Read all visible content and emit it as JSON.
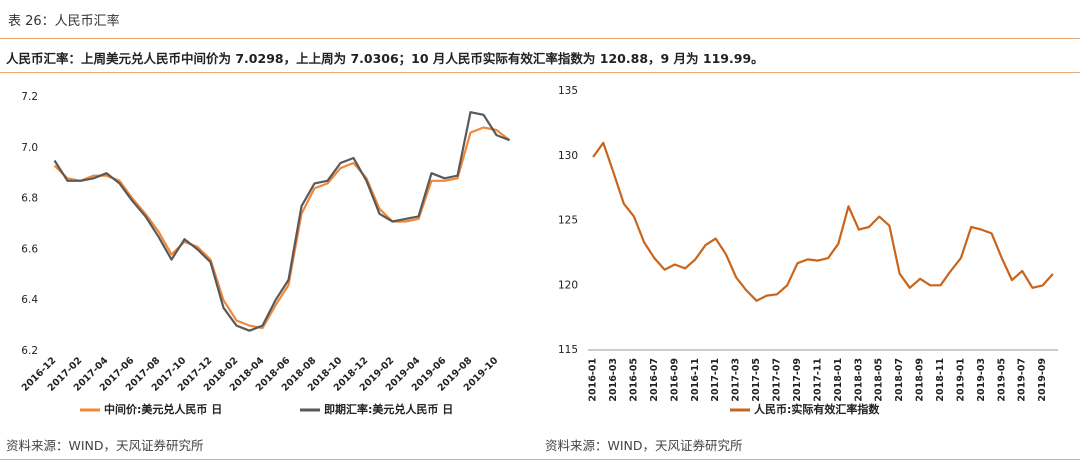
{
  "header": {
    "title": "表 26：人民币汇率"
  },
  "summary": "人民币汇率：上周美元兑人民币中间价为 7.0298，上上周为 7.0306；10 月人民币实际有效汇率指数为 120.88，9 月为 119.99。",
  "chart_data": [
    {
      "type": "line",
      "categories": [
        "2016-12",
        null,
        "2017-02",
        null,
        "2017-04",
        null,
        "2017-06",
        null,
        "2017-08",
        null,
        "2017-10",
        null,
        "2017-12",
        null,
        "2018-02",
        null,
        "2018-04",
        null,
        "2018-06",
        null,
        "2018-08",
        null,
        "2018-10",
        null,
        "2018-12",
        null,
        "2019-02",
        null,
        "2019-04",
        null,
        "2019-06",
        null,
        "2019-08",
        null,
        "2019-10",
        null
      ],
      "series": [
        {
          "name": "中间价:美元兑人民币 日",
          "color": "#f0883a",
          "values": [
            6.93,
            6.88,
            6.87,
            6.89,
            6.89,
            6.87,
            6.8,
            6.74,
            6.67,
            6.58,
            6.63,
            6.61,
            6.56,
            6.4,
            6.32,
            6.3,
            6.29,
            6.38,
            6.46,
            6.74,
            6.84,
            6.86,
            6.92,
            6.94,
            6.88,
            6.76,
            6.71,
            6.71,
            6.72,
            6.87,
            6.87,
            6.88,
            7.06,
            7.08,
            7.07,
            7.03
          ]
        },
        {
          "name": "即期汇率:美元兑人民币 日",
          "color": "#595959",
          "values": [
            6.95,
            6.87,
            6.87,
            6.88,
            6.9,
            6.86,
            6.79,
            6.73,
            6.65,
            6.56,
            6.64,
            6.6,
            6.55,
            6.37,
            6.3,
            6.28,
            6.3,
            6.4,
            6.48,
            6.77,
            6.86,
            6.87,
            6.94,
            6.96,
            6.87,
            6.74,
            6.71,
            6.72,
            6.73,
            6.9,
            6.88,
            6.89,
            7.14,
            7.13,
            7.05,
            7.03
          ]
        }
      ],
      "ylim": [
        6.2,
        7.2
      ],
      "yticks": [
        6.2,
        6.4,
        6.6,
        6.8,
        {
          "value": 7,
          "label": "7.0"
        },
        7.2
      ]
    },
    {
      "type": "line",
      "categories": [
        "2016-01",
        null,
        "2016-03",
        null,
        "2016-05",
        null,
        "2016-07",
        null,
        "2016-09",
        null,
        "2016-11",
        null,
        "2017-01",
        null,
        "2017-03",
        null,
        "2017-05",
        null,
        "2017-07",
        null,
        "2017-09",
        null,
        "2017-11",
        null,
        "2018-01",
        null,
        "2018-03",
        null,
        "2018-05",
        null,
        "2018-07",
        null,
        "2018-09",
        null,
        "2018-11",
        null,
        "2019-01",
        null,
        "2019-03",
        null,
        "2019-05",
        null,
        "2019-07",
        null,
        "2019-09",
        null
      ],
      "series": [
        {
          "name": "人民币:实际有效汇率指数",
          "color": "#c8651b",
          "values": [
            129.9,
            131.0,
            128.7,
            126.3,
            125.3,
            123.3,
            122.1,
            121.2,
            121.6,
            121.3,
            122.0,
            123.1,
            123.6,
            122.4,
            120.6,
            119.6,
            118.8,
            119.2,
            119.3,
            120.0,
            121.7,
            122.0,
            121.9,
            122.1,
            123.2,
            126.1,
            124.3,
            124.5,
            125.3,
            124.6,
            120.9,
            119.8,
            120.5,
            120.0,
            120.0,
            121.1,
            122.1,
            124.5,
            124.3,
            124.0,
            122.1,
            120.4,
            121.1,
            119.8,
            119.99,
            120.88
          ]
        }
      ],
      "ylim": [
        115,
        135
      ],
      "yticks": [
        115,
        120,
        125,
        130,
        135
      ]
    }
  ],
  "sources": [
    "资料来源：WIND，天风证券研究所",
    "资料来源：WIND，天风证券研究所"
  ]
}
